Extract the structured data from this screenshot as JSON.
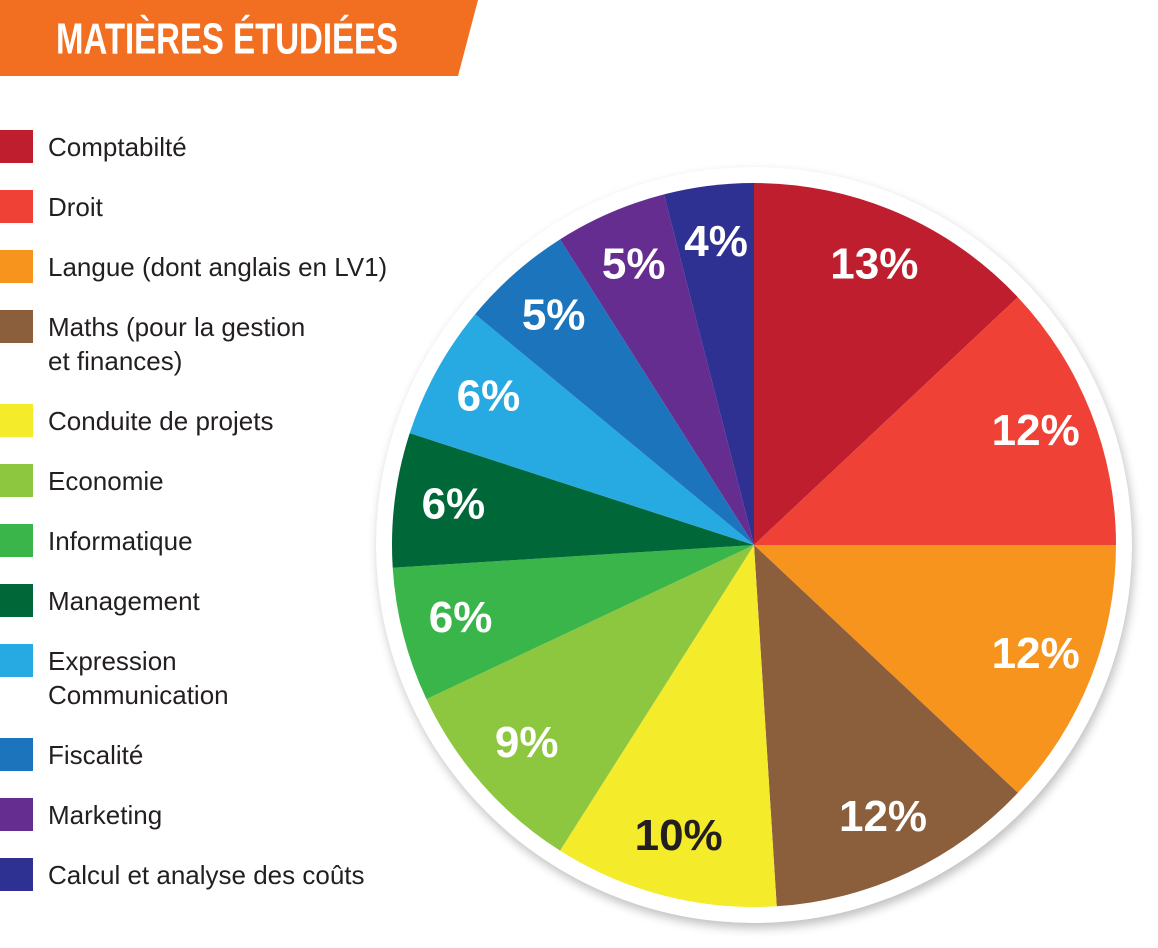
{
  "chart_data": {
    "type": "pie",
    "title": "MATIÈRES ÉTUDIÉES",
    "categories": [
      "Comptabilté",
      "Droit",
      "Langue (dont anglais en LV1)",
      "Maths (pour la gestion\net finances)",
      "Conduite de projets",
      "Economie",
      "Informatique",
      "Management",
      "Expression\nCommunication",
      "Fiscalité",
      "Marketing",
      "Calcul et analyse des coûts"
    ],
    "values": [
      13,
      12,
      12,
      12,
      10,
      9,
      6,
      6,
      6,
      5,
      5,
      4
    ],
    "value_labels": [
      "13%",
      "12%",
      "12%",
      "12%",
      "10%",
      "9%",
      "6%",
      "6%",
      "6%",
      "5%",
      "5%",
      "4%"
    ],
    "colors": [
      "#be1e2d",
      "#ef4136",
      "#f7941d",
      "#8b5e3c",
      "#f4eb2a",
      "#8dc63f",
      "#39b54a",
      "#006838",
      "#27aae1",
      "#1c75bc",
      "#662d91",
      "#2e3192"
    ]
  }
}
